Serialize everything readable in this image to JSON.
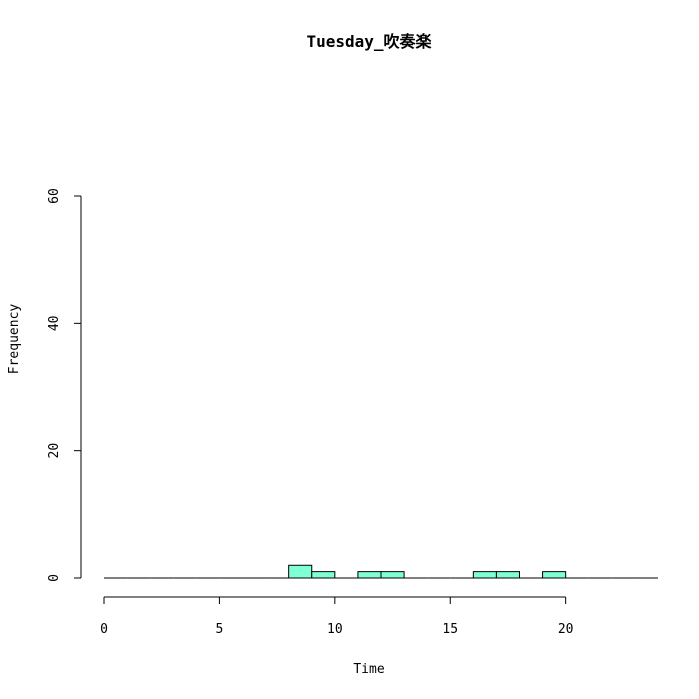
{
  "chart_data": {
    "type": "bar",
    "title": "Tuesday_吹奏楽",
    "xlabel": "Time",
    "ylabel": "Frequency",
    "xlim": [
      0,
      24
    ],
    "ylim": [
      0,
      60
    ],
    "x_ticks": [
      0,
      5,
      10,
      15,
      20
    ],
    "y_ticks": [
      0,
      20,
      40,
      60
    ],
    "bin_width": 1,
    "bin_starts": [
      0,
      1,
      2,
      3,
      4,
      5,
      6,
      7,
      8,
      9,
      10,
      11,
      12,
      13,
      14,
      15,
      16,
      17,
      18,
      19,
      20,
      21,
      22,
      23
    ],
    "values": [
      0,
      0,
      0,
      0,
      0,
      0,
      0,
      0,
      2,
      1,
      0,
      1,
      1,
      0,
      0,
      0,
      1,
      1,
      0,
      1,
      0,
      0,
      0,
      0
    ],
    "bar_color": "#7fffd4",
    "grid": false
  }
}
